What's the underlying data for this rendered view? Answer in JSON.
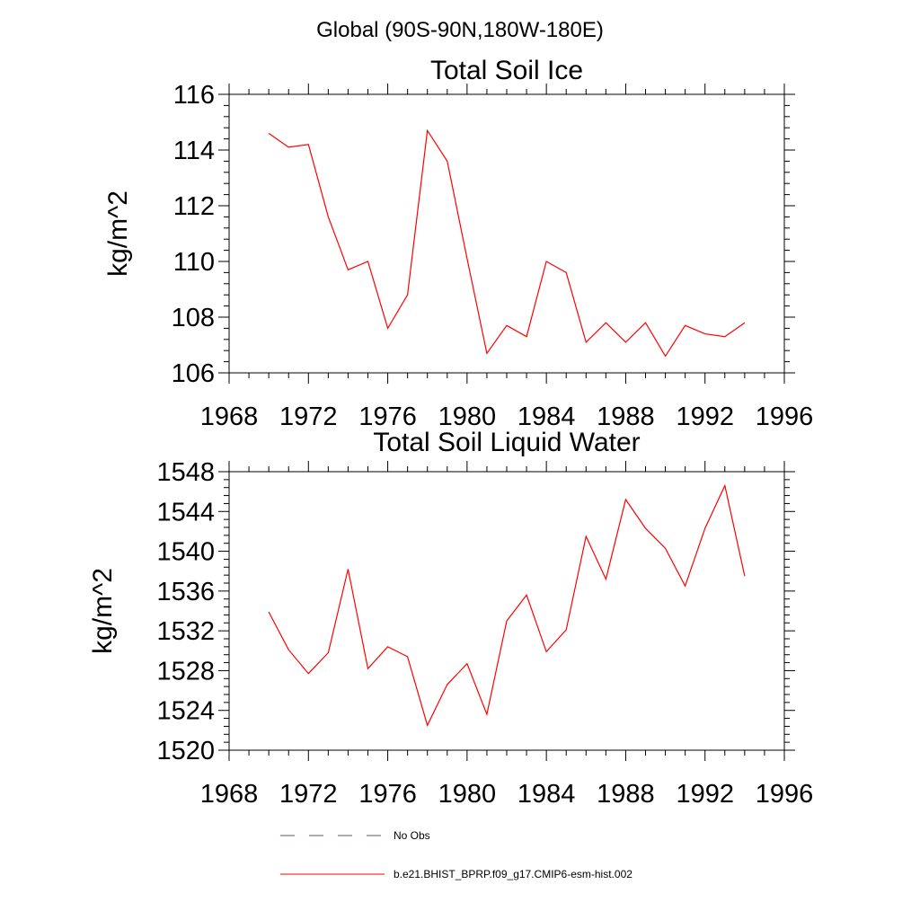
{
  "figure": {
    "main_title": "Global (90S-90N,180W-180E)"
  },
  "chart_data": [
    {
      "type": "line",
      "title": "Total Soil Ice",
      "xlabel": "",
      "ylabel": "kg/m^2",
      "xlim": [
        1968,
        1996
      ],
      "ylim": [
        106,
        116
      ],
      "xticks": [
        1968,
        1972,
        1976,
        1980,
        1984,
        1988,
        1992,
        1996
      ],
      "yticks": [
        106,
        108,
        110,
        112,
        114,
        116
      ],
      "grid": false,
      "series": [
        {
          "name": "b.e21.BHIST_BPRP.f09_g17.CMIP6-esm-hist.002",
          "color": "#ff0000",
          "x": [
            1970,
            1971,
            1972,
            1973,
            1974,
            1975,
            1976,
            1977,
            1978,
            1979,
            1980,
            1981,
            1982,
            1983,
            1984,
            1985,
            1986,
            1987,
            1988,
            1989,
            1990,
            1991,
            1992,
            1993,
            1994
          ],
          "y": [
            114.6,
            114.1,
            114.2,
            111.6,
            109.7,
            110.0,
            107.6,
            108.8,
            114.7,
            113.6,
            110.1,
            106.7,
            107.7,
            107.3,
            110.0,
            109.6,
            107.1,
            107.8,
            107.1,
            107.8,
            106.6,
            107.7,
            107.4,
            107.3,
            107.8
          ]
        }
      ]
    },
    {
      "type": "line",
      "title": "Total Soil Liquid Water",
      "xlabel": "",
      "ylabel": "kg/m^2",
      "xlim": [
        1968,
        1996
      ],
      "ylim": [
        1520,
        1548
      ],
      "xticks": [
        1968,
        1972,
        1976,
        1980,
        1984,
        1988,
        1992,
        1996
      ],
      "yticks": [
        1520,
        1524,
        1528,
        1532,
        1536,
        1540,
        1544,
        1548
      ],
      "grid": false,
      "series": [
        {
          "name": "b.e21.BHIST_BPRP.f09_g17.CMIP6-esm-hist.002",
          "color": "#ff0000",
          "x": [
            1970,
            1971,
            1972,
            1973,
            1974,
            1975,
            1976,
            1977,
            1978,
            1979,
            1980,
            1981,
            1982,
            1983,
            1984,
            1985,
            1986,
            1987,
            1988,
            1989,
            1990,
            1991,
            1992,
            1993,
            1994
          ],
          "y": [
            1533.9,
            1530.1,
            1527.7,
            1529.8,
            1538.2,
            1528.2,
            1530.4,
            1529.4,
            1522.5,
            1526.6,
            1528.7,
            1523.6,
            1533.0,
            1535.6,
            1529.9,
            1532.1,
            1541.5,
            1537.2,
            1545.2,
            1542.3,
            1540.3,
            1536.5,
            1542.3,
            1546.6,
            1537.5
          ]
        }
      ]
    }
  ],
  "legend": {
    "placement": "bottom-center",
    "entries": [
      {
        "label": "No Obs",
        "color": "#4a5a80",
        "style": "dashed"
      },
      {
        "label": "b.e21.BHIST_BPRP.f09_g17.CMIP6-esm-hist.002",
        "color": "#ff0000",
        "style": "solid"
      }
    ]
  }
}
